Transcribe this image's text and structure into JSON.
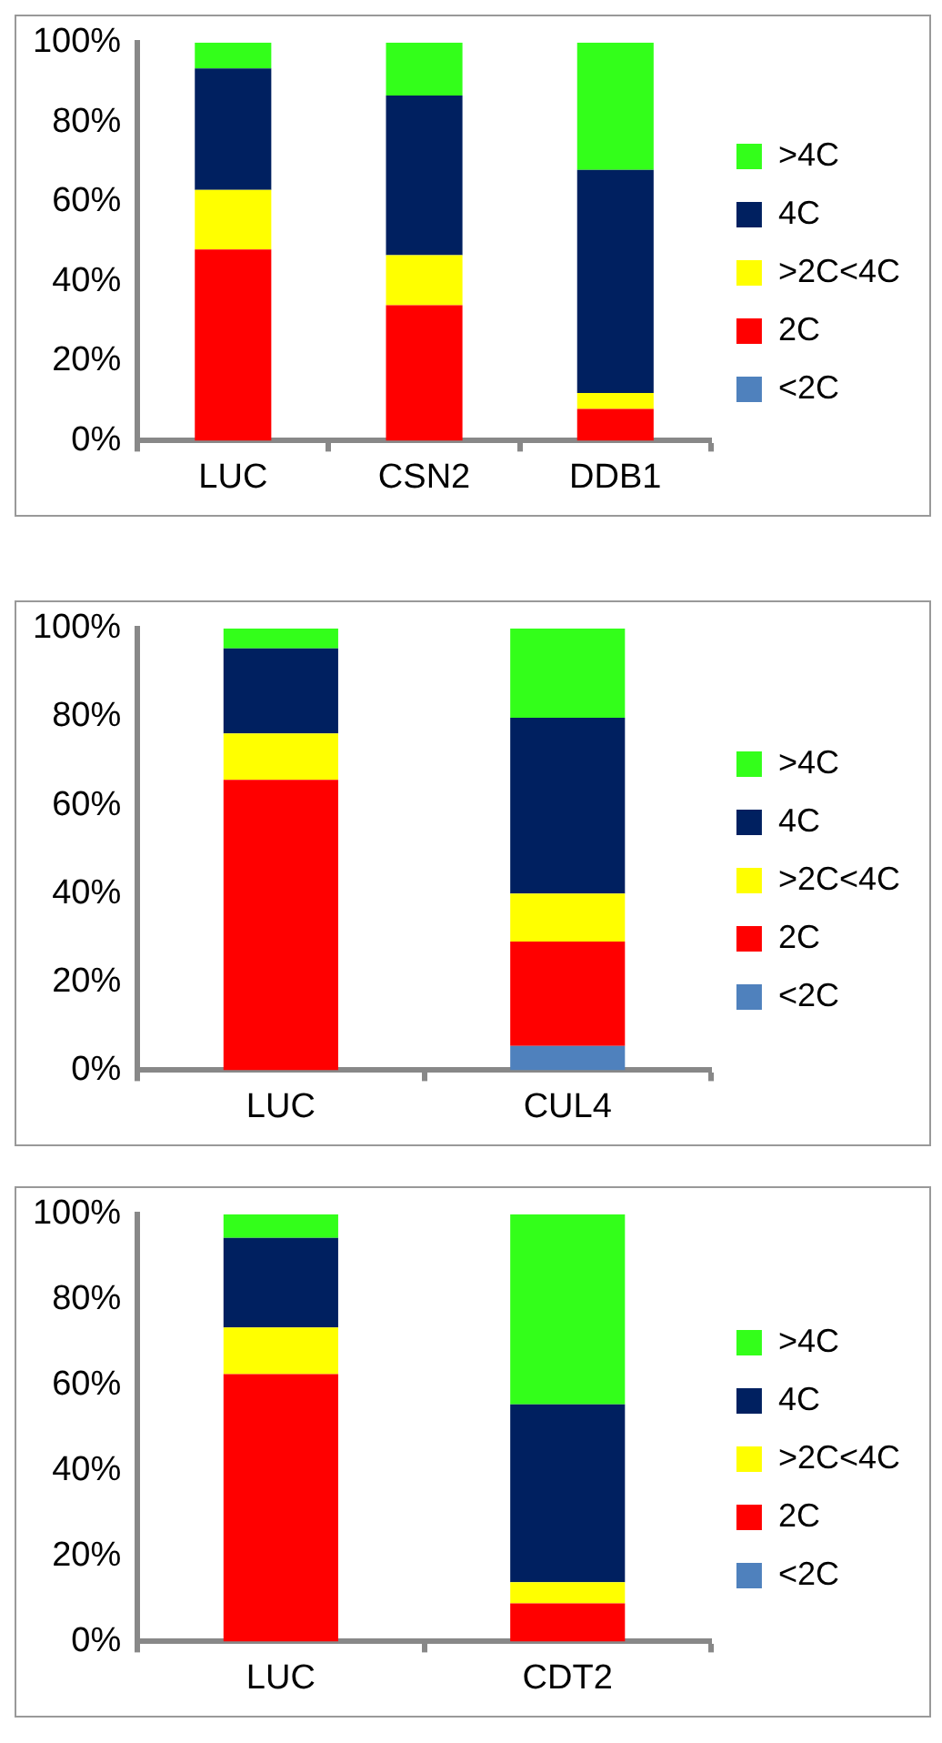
{
  "chart_data": [
    {
      "type": "bar",
      "stacked": true,
      "grid": false,
      "legend": "right",
      "categories": [
        "LUC",
        "CSN2",
        "DDB1"
      ],
      "ylim": [
        0,
        100
      ],
      "yticks": [
        {
          "value": 0,
          "label": "0%"
        },
        {
          "value": 20,
          "label": "20%"
        },
        {
          "value": 40,
          "label": "40%"
        },
        {
          "value": 60,
          "label": "60%"
        },
        {
          "value": 80,
          "label": "80%"
        },
        {
          "value": 100,
          "label": "100%"
        }
      ],
      "series": [
        {
          "name": "<2C",
          "color": "#4f81bd",
          "values": [
            0,
            0,
            0
          ]
        },
        {
          "name": "2C",
          "color": "#ff0000",
          "values": [
            48,
            34,
            8
          ]
        },
        {
          "name": ">2C<4C",
          "color": "#ffff00",
          "values": [
            15,
            12.6,
            4
          ]
        },
        {
          "name": "4C",
          "color": "#002060",
          "values": [
            30.5,
            40.1,
            56
          ]
        },
        {
          "name": ">4C",
          "color": "#33ff1a",
          "values": [
            6.5,
            13.3,
            32
          ]
        }
      ]
    },
    {
      "type": "bar",
      "stacked": true,
      "grid": false,
      "legend": "right",
      "categories": [
        "LUC",
        "CUL4"
      ],
      "ylim": [
        0,
        100
      ],
      "yticks": [
        {
          "value": 0,
          "label": "0%"
        },
        {
          "value": 20,
          "label": "20%"
        },
        {
          "value": 40,
          "label": "40%"
        },
        {
          "value": 60,
          "label": "60%"
        },
        {
          "value": 80,
          "label": "80%"
        },
        {
          "value": 100,
          "label": "100%"
        }
      ],
      "series": [
        {
          "name": "<2C",
          "color": "#4f81bd",
          "values": [
            0,
            5.5
          ]
        },
        {
          "name": "2C",
          "color": "#ff0000",
          "values": [
            65.7,
            23.6
          ]
        },
        {
          "name": ">2C<4C",
          "color": "#ffff00",
          "values": [
            10.5,
            10.9
          ]
        },
        {
          "name": "4C",
          "color": "#002060",
          "values": [
            19.3,
            39.8
          ]
        },
        {
          "name": ">4C",
          "color": "#33ff1a",
          "values": [
            4.5,
            20.2
          ]
        }
      ]
    },
    {
      "type": "bar",
      "stacked": true,
      "grid": false,
      "legend": "right",
      "categories": [
        "LUC",
        "CDT2"
      ],
      "ylim": [
        0,
        100
      ],
      "yticks": [
        {
          "value": 0,
          "label": "0%"
        },
        {
          "value": 20,
          "label": "20%"
        },
        {
          "value": 40,
          "label": "40%"
        },
        {
          "value": 60,
          "label": "60%"
        },
        {
          "value": 80,
          "label": "80%"
        },
        {
          "value": 100,
          "label": "100%"
        }
      ],
      "series": [
        {
          "name": "<2C",
          "color": "#4f81bd",
          "values": [
            0,
            0
          ]
        },
        {
          "name": "2C",
          "color": "#ff0000",
          "values": [
            62.6,
            8.9
          ]
        },
        {
          "name": ">2C<4C",
          "color": "#ffff00",
          "values": [
            10.9,
            5
          ]
        },
        {
          "name": "4C",
          "color": "#002060",
          "values": [
            21,
            41.6
          ]
        },
        {
          "name": ">4C",
          "color": "#33ff1a",
          "values": [
            5.5,
            44.5
          ]
        }
      ]
    }
  ]
}
